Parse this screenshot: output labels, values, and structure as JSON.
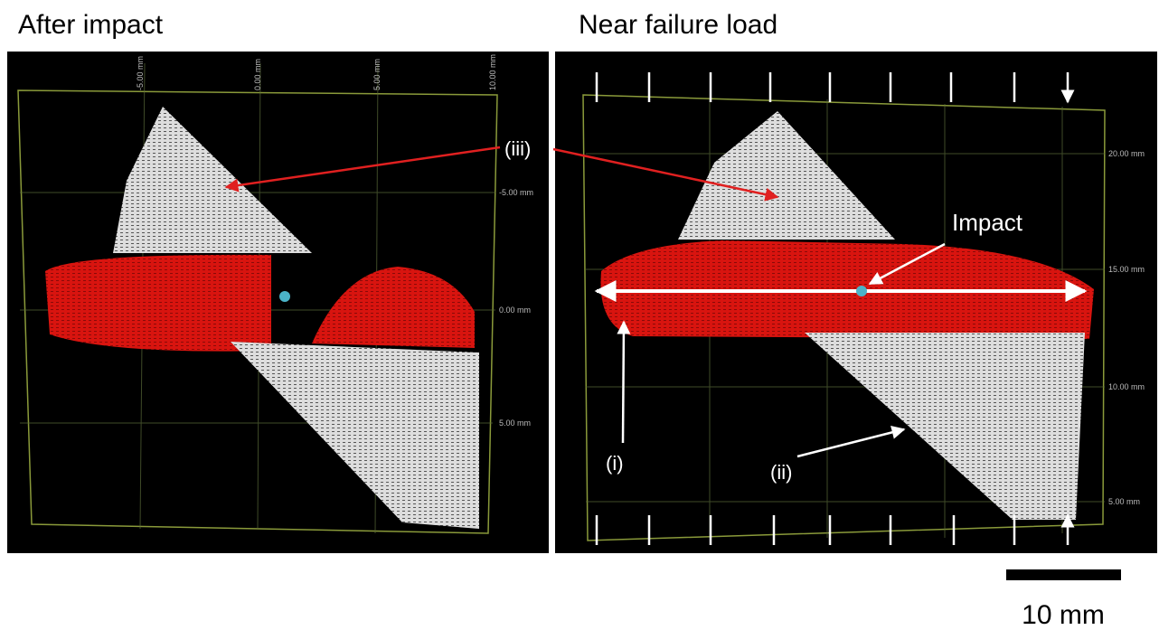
{
  "panels": [
    {
      "title": "After impact",
      "axis_labels": {
        "top": [
          "-5.00 mm",
          "0.00 mm",
          "5.00 mm",
          "10.00 mm"
        ],
        "right": [
          "-5.00 mm",
          "0.00 mm",
          "5.00 mm"
        ]
      },
      "annotations": [
        "(iii)"
      ]
    },
    {
      "title": "Near failure load",
      "axis_labels": {
        "right": [
          "20.00 mm",
          "15.00 mm",
          "10.00 mm",
          "5.00 mm"
        ]
      },
      "annotations": [
        "Impact",
        "(i)",
        "(ii)"
      ]
    }
  ],
  "scale_bar": {
    "label": "10 mm"
  }
}
